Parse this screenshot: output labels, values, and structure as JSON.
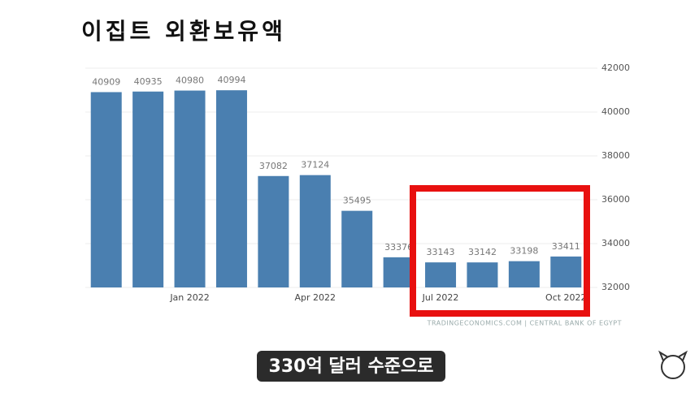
{
  "chart_data": {
    "type": "bar",
    "title": "이집트 외환보유액",
    "categories": [
      null,
      null,
      "Jan 2022",
      null,
      null,
      "Apr 2022",
      null,
      null,
      "Jul 2022",
      null,
      null,
      "Oct 2022"
    ],
    "values": [
      40909,
      40935,
      40980,
      40994,
      37082,
      37124,
      35495,
      33376,
      33143,
      33142,
      33198,
      33411
    ],
    "color": "#4a7fb0",
    "ylim": [
      32000,
      42000
    ],
    "yticks": [
      32000,
      34000,
      36000,
      38000,
      40000,
      42000
    ],
    "grid": true,
    "source": "TRADINGECONOMICS.COM | CENTRAL BANK OF EGYPT"
  },
  "caption": "330억 달러 수준으로"
}
